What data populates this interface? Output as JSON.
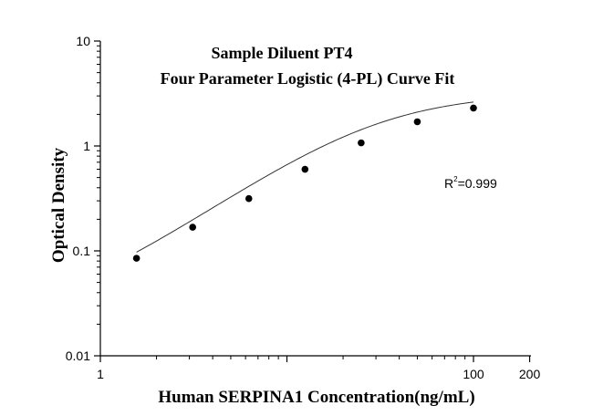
{
  "chart_data": {
    "type": "scatter",
    "title_line1": "Sample Diluent PT4",
    "title_line2": "Four Parameter Logistic (4-PL) Curve Fit",
    "xlabel": "Human SERPINA1 Concentration(ng/mL)",
    "ylabel": "Optical Density",
    "xscale": "log",
    "yscale": "log",
    "xlim": [
      1,
      200
    ],
    "ylim": [
      0.01,
      10
    ],
    "x_ticks": [
      {
        "value": 1,
        "label": "1"
      },
      {
        "value": 100,
        "label": "100"
      },
      {
        "value": 200,
        "label": "200"
      }
    ],
    "y_ticks": [
      {
        "value": 0.01,
        "label": "0.01"
      },
      {
        "value": 0.1,
        "label": "0.1"
      },
      {
        "value": 1,
        "label": "1"
      },
      {
        "value": 10,
        "label": "10"
      }
    ],
    "grid": false,
    "points": [
      {
        "x": 1.5625,
        "y": 0.085
      },
      {
        "x": 3.125,
        "y": 0.168
      },
      {
        "x": 6.25,
        "y": 0.315
      },
      {
        "x": 12.5,
        "y": 0.6
      },
      {
        "x": 25,
        "y": 1.07
      },
      {
        "x": 50,
        "y": 1.7
      },
      {
        "x": 100,
        "y": 2.3
      }
    ],
    "fit": {
      "A": 0.02,
      "B": 1.25,
      "C": 30,
      "D": 3.2
    },
    "annotation": {
      "prefix": "R",
      "superscript": "2",
      "value": "=0.999"
    }
  }
}
